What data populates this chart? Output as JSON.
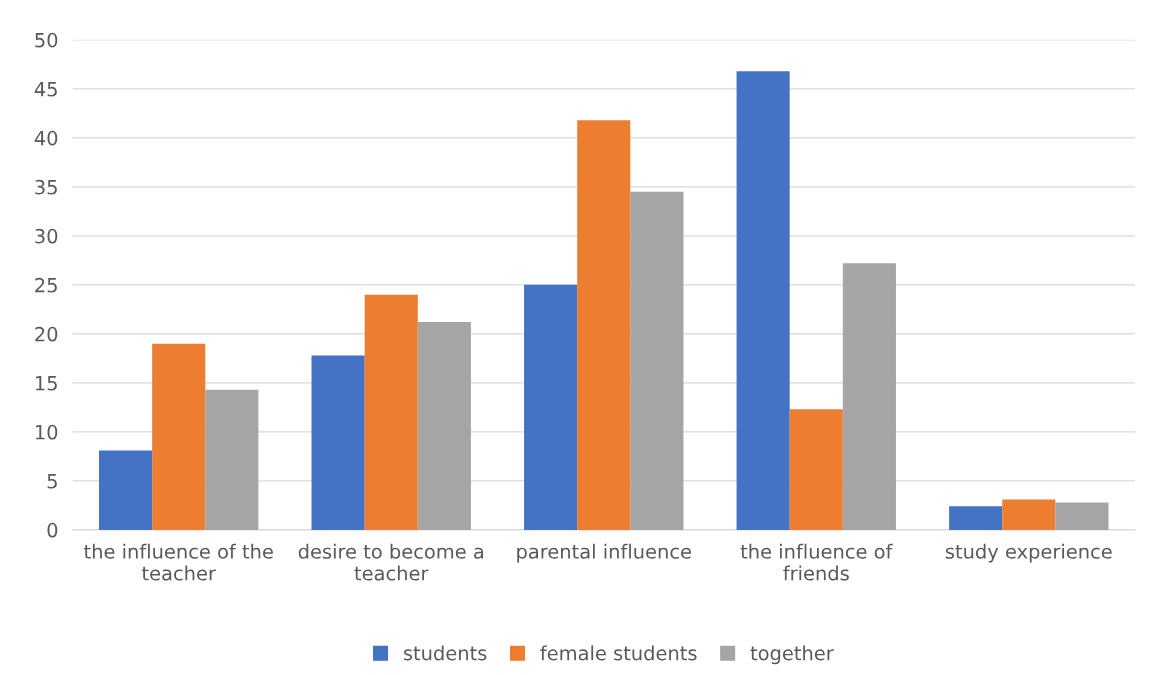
{
  "chart_data": {
    "type": "bar",
    "categories": [
      "the influence of the\nteacher",
      "desire to become a\nteacher",
      "parental influence",
      "the influence of\nfriends",
      "study experience"
    ],
    "series": [
      {
        "name": "students",
        "color": "#4472c4",
        "values": [
          8.1,
          17.8,
          25,
          46.8,
          2.4
        ]
      },
      {
        "name": "female students",
        "color": "#ed7d31",
        "values": [
          19,
          24,
          41.8,
          12.3,
          3.1
        ]
      },
      {
        "name": "together",
        "color": "#a5a5a5",
        "values": [
          14.3,
          21.2,
          34.5,
          27.2,
          2.8
        ]
      }
    ],
    "ylim": [
      0,
      50
    ],
    "yticks": [
      0,
      5,
      10,
      15,
      20,
      25,
      30,
      35,
      40,
      45,
      50
    ],
    "grid": "y",
    "legend": "bottom"
  }
}
